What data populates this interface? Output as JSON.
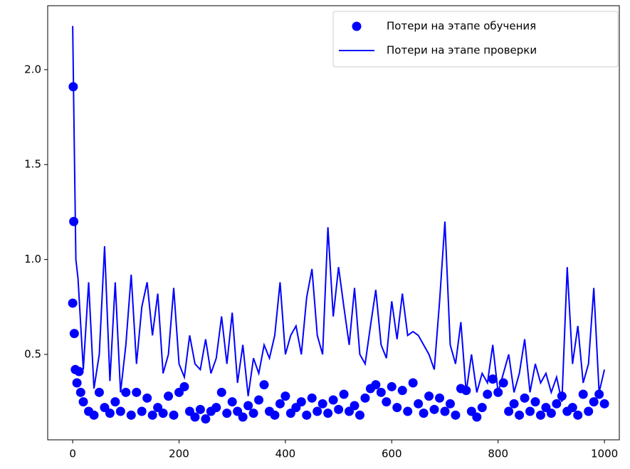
{
  "chart_data": {
    "type": "line",
    "xlim": [
      -47,
      1028
    ],
    "xticks": [
      0,
      200,
      400,
      600,
      800,
      1000
    ],
    "ylim": [
      0.05,
      2.337
    ],
    "yticks": [
      0.5,
      {
        "value": 1,
        "label": "1.0"
      },
      1.5,
      {
        "value": 2,
        "label": "2.0"
      }
    ],
    "legend": "upper right",
    "series": [
      {
        "name": "Потери на этапе обучения",
        "color": "#0000ff",
        "style": "markers",
        "x": [
          0,
          1,
          2,
          3,
          5,
          8,
          12,
          15,
          20,
          30,
          40,
          50,
          60,
          70,
          80,
          90,
          100,
          110,
          120,
          130,
          140,
          150,
          160,
          170,
          180,
          190,
          200,
          210,
          220,
          230,
          240,
          250,
          260,
          270,
          280,
          290,
          300,
          310,
          320,
          330,
          340,
          350,
          360,
          370,
          380,
          390,
          400,
          410,
          420,
          430,
          440,
          450,
          460,
          470,
          480,
          490,
          500,
          510,
          520,
          530,
          540,
          550,
          560,
          570,
          580,
          590,
          600,
          610,
          620,
          630,
          640,
          650,
          660,
          670,
          680,
          690,
          700,
          710,
          720,
          730,
          740,
          750,
          760,
          770,
          780,
          790,
          800,
          810,
          820,
          830,
          840,
          850,
          860,
          870,
          880,
          890,
          900,
          910,
          920,
          930,
          940,
          950,
          960,
          970,
          980,
          990,
          1000
        ],
        "values": [
          0.77,
          1.91,
          1.2,
          0.61,
          0.42,
          0.35,
          0.41,
          0.3,
          0.25,
          0.2,
          0.18,
          0.3,
          0.22,
          0.19,
          0.25,
          0.2,
          0.3,
          0.18,
          0.3,
          0.2,
          0.27,
          0.18,
          0.22,
          0.19,
          0.28,
          0.18,
          0.3,
          0.33,
          0.2,
          0.17,
          0.21,
          0.16,
          0.2,
          0.22,
          0.3,
          0.19,
          0.25,
          0.2,
          0.17,
          0.23,
          0.19,
          0.26,
          0.34,
          0.2,
          0.18,
          0.24,
          0.28,
          0.19,
          0.22,
          0.25,
          0.18,
          0.27,
          0.2,
          0.24,
          0.19,
          0.26,
          0.21,
          0.29,
          0.2,
          0.23,
          0.18,
          0.27,
          0.32,
          0.34,
          0.3,
          0.25,
          0.33,
          0.22,
          0.31,
          0.2,
          0.35,
          0.24,
          0.19,
          0.28,
          0.21,
          0.27,
          0.2,
          0.24,
          0.18,
          0.32,
          0.31,
          0.2,
          0.17,
          0.22,
          0.29,
          0.37,
          0.3,
          0.35,
          0.2,
          0.24,
          0.18,
          0.27,
          0.2,
          0.25,
          0.18,
          0.22,
          0.19,
          0.24,
          0.28,
          0.2,
          0.22,
          0.18,
          0.29,
          0.2,
          0.25,
          0.29,
          0.24
        ]
      },
      {
        "name": "Потери на этапе проверки",
        "color": "#0000ff",
        "style": "line",
        "x": [
          0,
          3,
          6,
          10,
          20,
          30,
          40,
          50,
          60,
          70,
          80,
          90,
          100,
          110,
          120,
          130,
          140,
          150,
          160,
          170,
          180,
          190,
          200,
          210,
          220,
          230,
          240,
          250,
          260,
          270,
          280,
          290,
          300,
          310,
          320,
          330,
          340,
          350,
          360,
          370,
          380,
          390,
          400,
          410,
          420,
          430,
          440,
          450,
          460,
          470,
          480,
          490,
          500,
          510,
          520,
          530,
          540,
          550,
          560,
          570,
          580,
          590,
          600,
          610,
          620,
          630,
          640,
          650,
          660,
          670,
          680,
          690,
          700,
          710,
          720,
          730,
          740,
          750,
          760,
          770,
          780,
          790,
          800,
          810,
          820,
          830,
          840,
          850,
          860,
          870,
          880,
          890,
          900,
          910,
          920,
          930,
          940,
          950,
          960,
          970,
          980,
          990,
          1000
        ],
        "values": [
          2.23,
          1.6,
          1.0,
          0.9,
          0.42,
          0.88,
          0.32,
          0.5,
          1.07,
          0.36,
          0.88,
          0.3,
          0.55,
          0.92,
          0.45,
          0.75,
          0.88,
          0.6,
          0.82,
          0.4,
          0.5,
          0.85,
          0.45,
          0.38,
          0.6,
          0.45,
          0.42,
          0.58,
          0.4,
          0.48,
          0.7,
          0.45,
          0.72,
          0.35,
          0.55,
          0.28,
          0.48,
          0.4,
          0.55,
          0.48,
          0.6,
          0.88,
          0.5,
          0.6,
          0.65,
          0.5,
          0.8,
          0.95,
          0.6,
          0.5,
          1.17,
          0.7,
          0.96,
          0.75,
          0.55,
          0.85,
          0.5,
          0.45,
          0.65,
          0.84,
          0.55,
          0.48,
          0.78,
          0.58,
          0.82,
          0.6,
          0.62,
          0.6,
          0.55,
          0.5,
          0.42,
          0.78,
          1.2,
          0.55,
          0.45,
          0.67,
          0.3,
          0.5,
          0.3,
          0.4,
          0.35,
          0.55,
          0.3,
          0.4,
          0.5,
          0.3,
          0.4,
          0.58,
          0.3,
          0.45,
          0.35,
          0.4,
          0.3,
          0.38,
          0.25,
          0.96,
          0.45,
          0.65,
          0.35,
          0.45,
          0.85,
          0.3,
          0.42
        ]
      }
    ]
  }
}
